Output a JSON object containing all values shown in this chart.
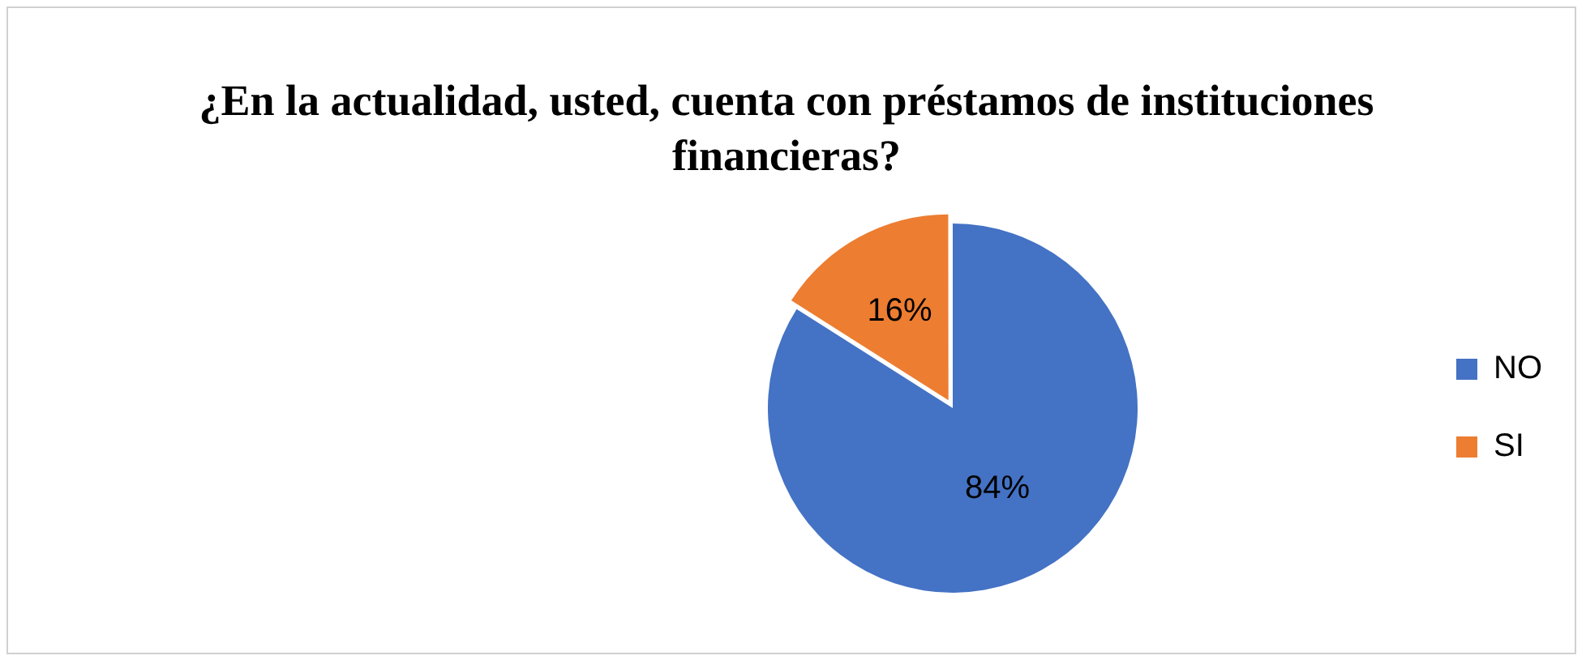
{
  "chart_data": {
    "type": "pie",
    "title": "¿En la actualidad, usted, cuenta con préstamos de instituciones financieras?",
    "categories": [
      "NO",
      "SI"
    ],
    "values": [
      84,
      16
    ],
    "value_labels": [
      "84%",
      "16%"
    ],
    "colors": [
      "#4472c4",
      "#ed7d31"
    ],
    "legend": "right"
  }
}
